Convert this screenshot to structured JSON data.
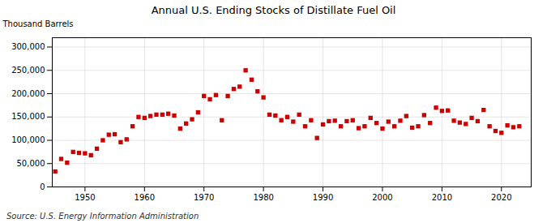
{
  "chart_data": {
    "type": "scatter",
    "title": "Annual U.S. Ending Stocks of Distillate Fuel Oil",
    "ylabel": "Thousand Barrels",
    "annotations": [
      "Source: U.S. Energy Information Administration"
    ],
    "color": "#cc0000",
    "marker": "square",
    "grid": true,
    "xlim": [
      1944.5,
      2025
    ],
    "xticks": [
      1950,
      1960,
      1970,
      1980,
      1990,
      2000,
      2010,
      2020
    ],
    "ylim": [
      0,
      320000
    ],
    "yticks": [
      0,
      {
        "value": 50000,
        "label": "50,000"
      },
      {
        "value": 100000,
        "label": "100,000"
      },
      {
        "value": 150000,
        "label": "150,000"
      },
      {
        "value": 200000,
        "label": "200,000"
      },
      {
        "value": 250000,
        "label": "250,000"
      },
      {
        "value": 300000,
        "label": "300,000"
      }
    ],
    "x": [
      1945,
      1946,
      1947,
      1948,
      1949,
      1950,
      1951,
      1952,
      1953,
      1954,
      1955,
      1956,
      1957,
      1958,
      1959,
      1960,
      1961,
      1962,
      1963,
      1964,
      1965,
      1966,
      1967,
      1968,
      1969,
      1970,
      1971,
      1972,
      1973,
      1974,
      1975,
      1976,
      1977,
      1978,
      1979,
      1980,
      1981,
      1982,
      1983,
      1984,
      1985,
      1986,
      1987,
      1988,
      1989,
      1990,
      1991,
      1992,
      1993,
      1994,
      1995,
      1996,
      1997,
      1998,
      1999,
      2000,
      2001,
      2002,
      2003,
      2004,
      2005,
      2006,
      2007,
      2008,
      2009,
      2010,
      2011,
      2012,
      2013,
      2014,
      2015,
      2016,
      2017,
      2018,
      2019,
      2020,
      2021,
      2022,
      2023
    ],
    "values": [
      33000,
      60000,
      52000,
      75000,
      73000,
      72000,
      68000,
      82000,
      100000,
      112000,
      113000,
      96000,
      102000,
      130000,
      150000,
      148000,
      152000,
      155000,
      155000,
      157000,
      153000,
      125000,
      136000,
      145000,
      160000,
      195000,
      188000,
      197000,
      143000,
      195000,
      210000,
      215000,
      250000,
      230000,
      205000,
      192000,
      155000,
      153000,
      143000,
      150000,
      140000,
      155000,
      130000,
      143000,
      105000,
      134000,
      141000,
      142000,
      130000,
      141000,
      143000,
      126000,
      130000,
      148000,
      137000,
      125000,
      140000,
      130000,
      142000,
      152000,
      127000,
      130000,
      154000,
      137000,
      170000,
      163000,
      164000,
      142000,
      138000,
      135000,
      148000,
      141000,
      165000,
      130000,
      120000,
      116000,
      132000,
      128000,
      130000
    ]
  }
}
